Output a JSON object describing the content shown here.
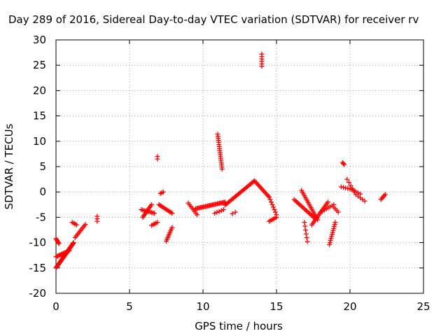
{
  "chart_data": {
    "type": "scatter",
    "title": "Day 289 of 2016, Sidereal Day-to-day VTEC variation (SDTVAR) for receiver rv",
    "xlabel": "GPS time / hours",
    "ylabel": "SDTVAR / TECUs",
    "xlim": [
      0,
      25
    ],
    "ylim": [
      -20,
      30
    ],
    "x_ticks": [
      0,
      5,
      10,
      15,
      20,
      25
    ],
    "y_ticks": [
      -20,
      -15,
      -10,
      -5,
      0,
      5,
      10,
      15,
      20,
      25,
      30
    ],
    "grid": true,
    "marker": "plus",
    "color": "#ff0000",
    "segments": [
      {
        "from": [
          0.0,
          -9.2
        ],
        "to": [
          0.2,
          -10.2
        ],
        "n": 6
      },
      {
        "from": [
          0.0,
          -15.0
        ],
        "to": [
          1.2,
          -10.0
        ],
        "n": 40
      },
      {
        "from": [
          0.0,
          -12.8
        ],
        "to": [
          0.9,
          -11.6
        ],
        "n": 14
      },
      {
        "from": [
          1.1,
          -6.0
        ],
        "to": [
          1.4,
          -6.5
        ],
        "n": 4
      },
      {
        "from": [
          1.3,
          -9.0
        ],
        "to": [
          2.0,
          -6.4
        ],
        "n": 10
      },
      {
        "from": [
          2.8,
          -4.8
        ],
        "to": [
          2.8,
          -5.8
        ],
        "n": 3
      },
      {
        "from": [
          5.8,
          -3.5
        ],
        "to": [
          6.7,
          -4.2
        ],
        "n": 10
      },
      {
        "from": [
          5.9,
          -5.0
        ],
        "to": [
          6.5,
          -2.5
        ],
        "n": 10
      },
      {
        "from": [
          6.5,
          -6.6
        ],
        "to": [
          6.9,
          -6.0
        ],
        "n": 5
      },
      {
        "from": [
          6.9,
          6.5
        ],
        "to": [
          6.9,
          7.0
        ],
        "n": 2
      },
      {
        "from": [
          7.0,
          -2.5
        ],
        "to": [
          7.9,
          -4.2
        ],
        "n": 12
      },
      {
        "from": [
          7.1,
          -0.3
        ],
        "to": [
          7.3,
          0.0
        ],
        "n": 3
      },
      {
        "from": [
          7.5,
          -9.7
        ],
        "to": [
          7.9,
          -7.0
        ],
        "n": 9
      },
      {
        "from": [
          9.0,
          -2.2
        ],
        "to": [
          9.6,
          -4.5
        ],
        "n": 8
      },
      {
        "from": [
          9.5,
          -3.3
        ],
        "to": [
          11.5,
          -2.0
        ],
        "n": 28
      },
      {
        "from": [
          10.8,
          -4.2
        ],
        "to": [
          11.4,
          -3.5
        ],
        "n": 5
      },
      {
        "from": [
          11.0,
          11.4
        ],
        "to": [
          11.3,
          4.5
        ],
        "n": 18
      },
      {
        "from": [
          11.5,
          -2.6
        ],
        "to": [
          13.5,
          2.2
        ],
        "n": 26
      },
      {
        "from": [
          12.0,
          -4.3
        ],
        "to": [
          12.2,
          -4.0
        ],
        "n": 2
      },
      {
        "from": [
          13.5,
          2.2
        ],
        "to": [
          14.5,
          -1.0
        ],
        "n": 14
      },
      {
        "from": [
          14.0,
          27.2
        ],
        "to": [
          14.0,
          24.8
        ],
        "n": 6
      },
      {
        "from": [
          14.5,
          -1.0
        ],
        "to": [
          15.0,
          -4.5
        ],
        "n": 8
      },
      {
        "from": [
          14.5,
          -5.8
        ],
        "to": [
          15.0,
          -5.0
        ],
        "n": 6
      },
      {
        "from": [
          16.2,
          -1.5
        ],
        "to": [
          17.6,
          -5.2
        ],
        "n": 18
      },
      {
        "from": [
          16.7,
          0.3
        ],
        "to": [
          17.8,
          -5.5
        ],
        "n": 18
      },
      {
        "from": [
          16.9,
          -6.0
        ],
        "to": [
          17.1,
          -9.8
        ],
        "n": 6
      },
      {
        "from": [
          17.4,
          -6.5
        ],
        "to": [
          18.5,
          -2.0
        ],
        "n": 16
      },
      {
        "from": [
          18.0,
          -4.0
        ],
        "to": [
          18.9,
          -2.5
        ],
        "n": 8
      },
      {
        "from": [
          18.6,
          -10.4
        ],
        "to": [
          19.0,
          -6.0
        ],
        "n": 12
      },
      {
        "from": [
          18.9,
          -3.0
        ],
        "to": [
          19.2,
          -4.0
        ],
        "n": 4
      },
      {
        "from": [
          19.5,
          5.8
        ],
        "to": [
          19.6,
          5.4
        ],
        "n": 3
      },
      {
        "from": [
          19.4,
          1.0
        ],
        "to": [
          20.0,
          0.6
        ],
        "n": 5
      },
      {
        "from": [
          19.8,
          2.5
        ],
        "to": [
          20.3,
          0.0
        ],
        "n": 5
      },
      {
        "from": [
          20.1,
          0.5
        ],
        "to": [
          20.7,
          -0.4
        ],
        "n": 5
      },
      {
        "from": [
          20.4,
          -0.5
        ],
        "to": [
          21.0,
          -1.8
        ],
        "n": 5
      },
      {
        "from": [
          22.1,
          -1.5
        ],
        "to": [
          22.4,
          -0.5
        ],
        "n": 5
      }
    ]
  }
}
